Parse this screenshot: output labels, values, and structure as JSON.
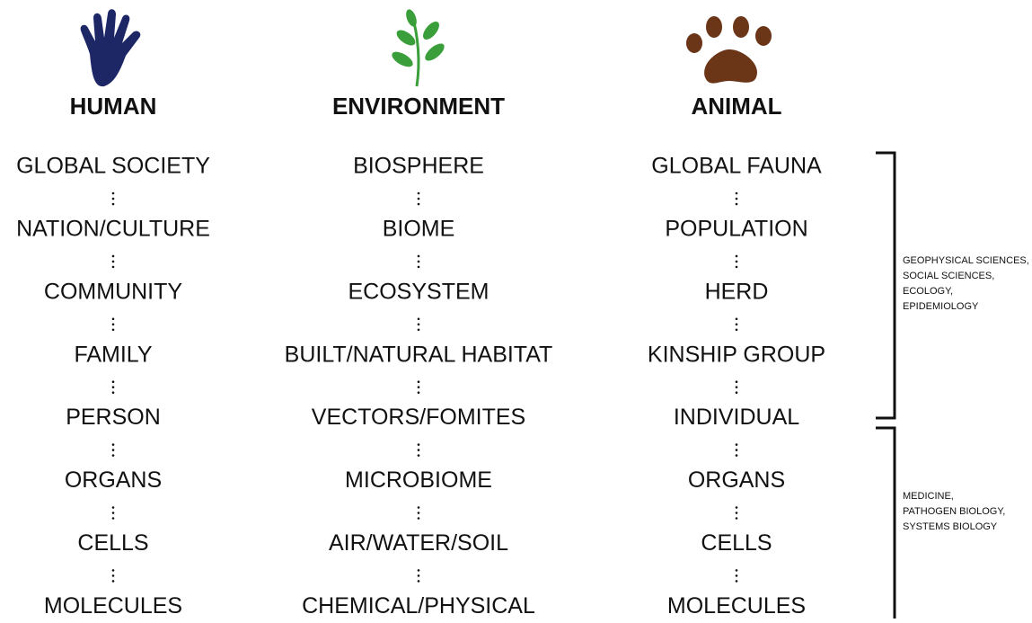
{
  "columns": [
    {
      "title": "HUMAN",
      "levels": [
        "GLOBAL SOCIETY",
        "NATION/CULTURE",
        "COMMUNITY",
        "FAMILY",
        "PERSON",
        "ORGANS",
        "CELLS",
        "MOLECULES"
      ]
    },
    {
      "title": "ENVIRONMENT",
      "levels": [
        "BIOSPHERE",
        "BIOME",
        "ECOSYSTEM",
        "BUILT/NATURAL HABITAT",
        "VECTORS/FOMITES",
        "MICROBIOME",
        "AIR/WATER/SOIL",
        "CHEMICAL/PHYSICAL"
      ]
    },
    {
      "title": "ANIMAL",
      "levels": [
        "GLOBAL FAUNA",
        "POPULATION",
        "HERD",
        "KINSHIP GROUP",
        "INDIVIDUAL",
        "ORGANS",
        "CELLS",
        "MOLECULES"
      ]
    }
  ],
  "brackets": [
    {
      "lines": [
        "GEOPHYSICAL SCIENCES,",
        "SOCIAL SCIENCES,",
        "ECOLOGY,",
        "EPIDEMIOLOGY"
      ]
    },
    {
      "lines": [
        "MEDICINE,",
        "PATHOGEN BIOLOGY,",
        "SYSTEMS BIOLOGY"
      ]
    }
  ]
}
